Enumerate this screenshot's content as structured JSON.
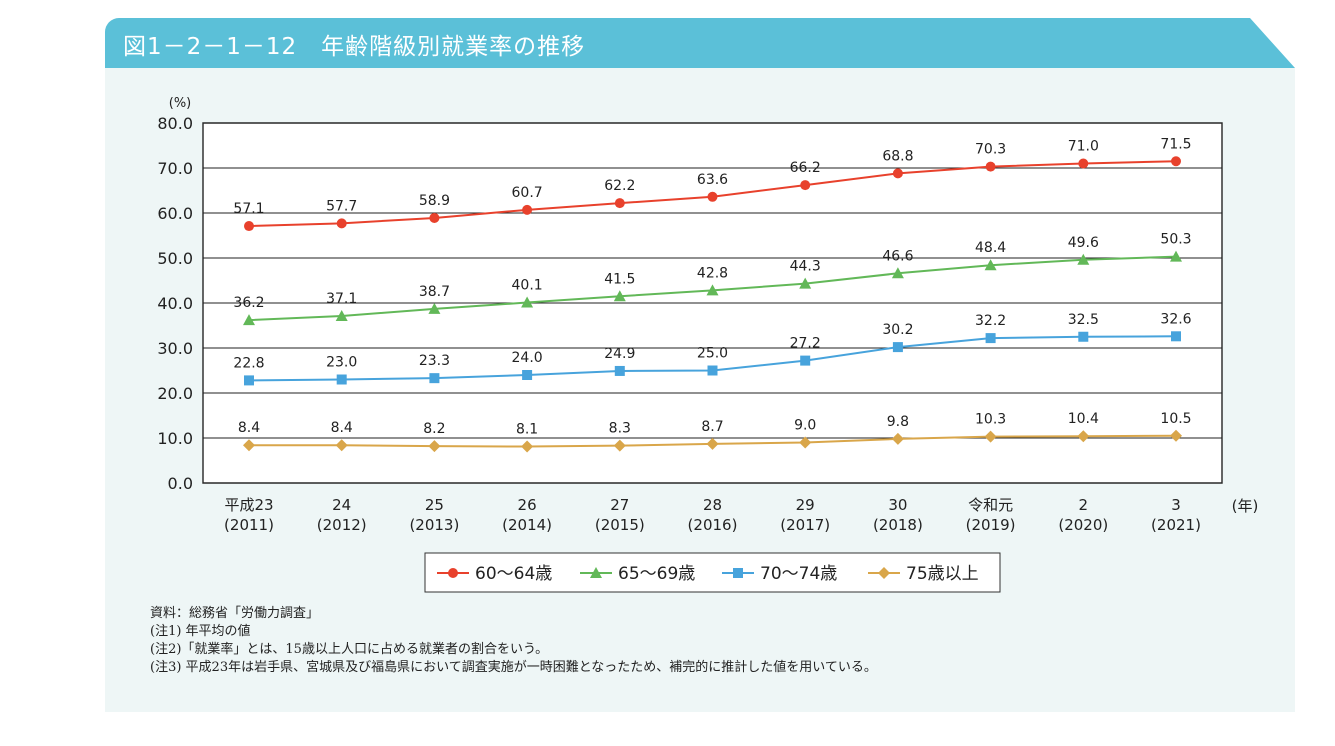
{
  "title": "図1－2－1－12　年齢階級別就業率の推移",
  "chart_data": {
    "type": "line",
    "title": "図1－2－1－12　年齢階級別就業率の推移",
    "ylabel": "(%)",
    "xlabel": "(年)",
    "ylim": [
      0,
      80
    ],
    "yticks": [
      "0.0",
      "10.0",
      "20.0",
      "30.0",
      "40.0",
      "50.0",
      "60.0",
      "70.0",
      "80.0"
    ],
    "grid": true,
    "legend_position": "bottom",
    "categories": [
      [
        "平成23",
        "(2011)"
      ],
      [
        "24",
        "(2012)"
      ],
      [
        "25",
        "(2013)"
      ],
      [
        "26",
        "(2014)"
      ],
      [
        "27",
        "(2015)"
      ],
      [
        "28",
        "(2016)"
      ],
      [
        "29",
        "(2017)"
      ],
      [
        "30",
        "(2018)"
      ],
      [
        "令和元",
        "(2019)"
      ],
      [
        "2",
        "(2020)"
      ],
      [
        "3",
        "(2021)"
      ]
    ],
    "series": [
      {
        "name": "60～64歳",
        "color": "#e8412c",
        "marker": "circle",
        "values": [
          57.1,
          57.7,
          58.9,
          60.7,
          62.2,
          63.6,
          66.2,
          68.8,
          70.3,
          71.0,
          71.5
        ]
      },
      {
        "name": "65～69歳",
        "color": "#62b858",
        "marker": "triangle",
        "values": [
          36.2,
          37.1,
          38.7,
          40.1,
          41.5,
          42.8,
          44.3,
          46.6,
          48.4,
          49.6,
          50.3
        ]
      },
      {
        "name": "70～74歳",
        "color": "#47a3dc",
        "marker": "square",
        "values": [
          22.8,
          23.0,
          23.3,
          24.0,
          24.9,
          25.0,
          27.2,
          30.2,
          32.2,
          32.5,
          32.6
        ]
      },
      {
        "name": "75歳以上",
        "color": "#d9a64a",
        "marker": "diamond",
        "values": [
          8.4,
          8.4,
          8.2,
          8.1,
          8.3,
          8.7,
          9.0,
          9.8,
          10.3,
          10.4,
          10.5
        ]
      }
    ]
  },
  "notes": [
    "資料：総務省「労働力調査」",
    "(注1) 年平均の値",
    "(注2)「就業率」とは、15歳以上人口に占める就業者の割合をいう。",
    "(注3) 平成23年は岩手県、宮城県及び福島県において調査実施が一時困難となったため、補完的に推計した値を用いている。"
  ]
}
